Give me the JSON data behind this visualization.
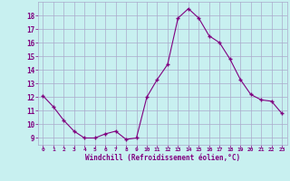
{
  "x": [
    0,
    1,
    2,
    3,
    4,
    5,
    6,
    7,
    8,
    9,
    10,
    11,
    12,
    13,
    14,
    15,
    16,
    17,
    18,
    19,
    20,
    21,
    22,
    23
  ],
  "y": [
    12.1,
    11.3,
    10.3,
    9.5,
    9.0,
    9.0,
    9.3,
    9.5,
    8.9,
    9.0,
    12.0,
    13.3,
    14.4,
    17.8,
    18.5,
    17.8,
    16.5,
    16.0,
    14.8,
    13.3,
    12.2,
    11.8,
    11.7,
    10.8
  ],
  "line_color": "#800080",
  "marker": "+",
  "marker_color": "#800080",
  "bg_color": "#c8f0f0",
  "grid_color": "#aaaacc",
  "xlabel": "Windchill (Refroidissement éolien,°C)",
  "xlabel_color": "#800080",
  "tick_color": "#800080",
  "ylim": [
    8.5,
    19.0
  ],
  "xlim": [
    -0.5,
    23.5
  ],
  "yticks": [
    9,
    10,
    11,
    12,
    13,
    14,
    15,
    16,
    17,
    18
  ],
  "xticks": [
    0,
    1,
    2,
    3,
    4,
    5,
    6,
    7,
    8,
    9,
    10,
    11,
    12,
    13,
    14,
    15,
    16,
    17,
    18,
    19,
    20,
    21,
    22,
    23
  ]
}
